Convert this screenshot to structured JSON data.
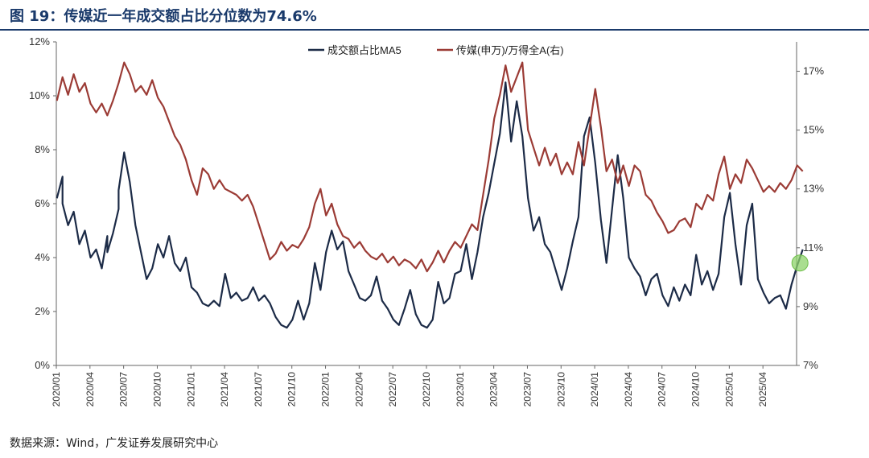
{
  "header": {
    "title": "图 19：传媒近一年成交额占比分位数为74.6%"
  },
  "footer": {
    "source": "数据来源：Wind，广发证券发展研究中心"
  },
  "colors": {
    "ma5": "#1c2b47",
    "index": "#9b3b35",
    "highlight": "#8ed36b",
    "accent": "#1a3a6b"
  },
  "chart_data": {
    "type": "line",
    "legend_position": "top-center",
    "grid": false,
    "x_ticks": [
      "2020/01",
      "2020/04",
      "2020/07",
      "2020/10",
      "2021/01",
      "2021/04",
      "2021/07",
      "2021/10",
      "2022/01",
      "2022/04",
      "2022/07",
      "2022/10",
      "2023/01",
      "2023/04",
      "2023/07",
      "2023/10",
      "2024/01",
      "2024/04",
      "2024/07",
      "2024/10",
      "2025/01",
      "2025/04"
    ],
    "x_range": [
      "2020/01",
      "2025/07"
    ],
    "y_left": {
      "ticks": [
        "0%",
        "2%",
        "4%",
        "6%",
        "8%",
        "10%",
        "12%"
      ],
      "min": 0,
      "max": 12
    },
    "y_right": {
      "ticks": [
        "7%",
        "9%",
        "11%",
        "13%",
        "15%",
        "17%"
      ],
      "min": 7,
      "max": 18
    },
    "series": [
      {
        "name": "成交额占比MA5",
        "axis": "left",
        "color": "#1c2b47",
        "unit": "%",
        "points": [
          [
            "2020/01",
            6.2
          ],
          [
            "2020/01",
            7.0
          ],
          [
            "2020/01",
            6.0
          ],
          [
            "2020/02",
            5.2
          ],
          [
            "2020/02",
            5.7
          ],
          [
            "2020/03",
            4.5
          ],
          [
            "2020/03",
            5.0
          ],
          [
            "2020/04",
            4.0
          ],
          [
            "2020/04",
            4.3
          ],
          [
            "2020/05",
            3.6
          ],
          [
            "2020/05",
            4.8
          ],
          [
            "2020/05",
            4.2
          ],
          [
            "2020/06",
            4.9
          ],
          [
            "2020/06",
            5.8
          ],
          [
            "2020/06",
            6.5
          ],
          [
            "2020/07",
            7.9
          ],
          [
            "2020/07",
            6.8
          ],
          [
            "2020/08",
            5.2
          ],
          [
            "2020/08",
            4.2
          ],
          [
            "2020/09",
            3.2
          ],
          [
            "2020/09",
            3.6
          ],
          [
            "2020/10",
            4.5
          ],
          [
            "2020/10",
            4.0
          ],
          [
            "2020/11",
            4.8
          ],
          [
            "2020/11",
            3.8
          ],
          [
            "2020/12",
            3.5
          ],
          [
            "2020/12",
            4.0
          ],
          [
            "2021/01",
            2.9
          ],
          [
            "2021/01",
            2.7
          ],
          [
            "2021/02",
            2.3
          ],
          [
            "2021/02",
            2.2
          ],
          [
            "2021/03",
            2.4
          ],
          [
            "2021/03",
            2.2
          ],
          [
            "2021/04",
            3.4
          ],
          [
            "2021/04",
            2.5
          ],
          [
            "2021/05",
            2.7
          ],
          [
            "2021/05",
            2.4
          ],
          [
            "2021/06",
            2.5
          ],
          [
            "2021/06",
            2.9
          ],
          [
            "2021/07",
            2.4
          ],
          [
            "2021/07",
            2.6
          ],
          [
            "2021/08",
            2.3
          ],
          [
            "2021/08",
            1.8
          ],
          [
            "2021/09",
            1.5
          ],
          [
            "2021/09",
            1.4
          ],
          [
            "2021/10",
            1.7
          ],
          [
            "2021/10",
            2.4
          ],
          [
            "2021/11",
            1.7
          ],
          [
            "2021/11",
            2.3
          ],
          [
            "2021/12",
            3.8
          ],
          [
            "2021/12",
            2.8
          ],
          [
            "2022/01",
            4.2
          ],
          [
            "2022/01",
            5.0
          ],
          [
            "2022/02",
            4.3
          ],
          [
            "2022/02",
            4.6
          ],
          [
            "2022/03",
            3.5
          ],
          [
            "2022/03",
            3.0
          ],
          [
            "2022/04",
            2.5
          ],
          [
            "2022/04",
            2.4
          ],
          [
            "2022/05",
            2.6
          ],
          [
            "2022/05",
            3.3
          ],
          [
            "2022/06",
            2.4
          ],
          [
            "2022/06",
            2.1
          ],
          [
            "2022/07",
            1.7
          ],
          [
            "2022/07",
            1.5
          ],
          [
            "2022/08",
            2.1
          ],
          [
            "2022/08",
            2.8
          ],
          [
            "2022/09",
            1.9
          ],
          [
            "2022/09",
            1.5
          ],
          [
            "2022/10",
            1.4
          ],
          [
            "2022/10",
            1.7
          ],
          [
            "2022/11",
            3.1
          ],
          [
            "2022/11",
            2.3
          ],
          [
            "2022/12",
            2.5
          ],
          [
            "2022/12",
            3.4
          ],
          [
            "2023/01",
            3.5
          ],
          [
            "2023/01",
            4.5
          ],
          [
            "2023/02",
            3.2
          ],
          [
            "2023/02",
            4.2
          ],
          [
            "2023/03",
            5.5
          ],
          [
            "2023/03",
            6.4
          ],
          [
            "2023/04",
            7.5
          ],
          [
            "2023/04",
            8.6
          ],
          [
            "2023/05",
            10.5
          ],
          [
            "2023/05",
            8.3
          ],
          [
            "2023/06",
            9.8
          ],
          [
            "2023/06",
            8.5
          ],
          [
            "2023/07",
            6.2
          ],
          [
            "2023/07",
            5.0
          ],
          [
            "2023/08",
            5.5
          ],
          [
            "2023/08",
            4.5
          ],
          [
            "2023/09",
            4.2
          ],
          [
            "2023/09",
            3.5
          ],
          [
            "2023/10",
            2.8
          ],
          [
            "2023/10",
            3.6
          ],
          [
            "2023/11",
            4.6
          ],
          [
            "2023/11",
            5.5
          ],
          [
            "2023/12",
            8.5
          ],
          [
            "2023/12",
            9.2
          ],
          [
            "2024/01",
            7.5
          ],
          [
            "2024/01",
            5.4
          ],
          [
            "2024/02",
            3.8
          ],
          [
            "2024/02",
            5.8
          ],
          [
            "2024/03",
            7.8
          ],
          [
            "2024/03",
            6.2
          ],
          [
            "2024/04",
            4.0
          ],
          [
            "2024/04",
            3.6
          ],
          [
            "2024/05",
            3.3
          ],
          [
            "2024/05",
            2.6
          ],
          [
            "2024/06",
            3.2
          ],
          [
            "2024/06",
            3.4
          ],
          [
            "2024/07",
            2.6
          ],
          [
            "2024/07",
            2.2
          ],
          [
            "2024/08",
            2.9
          ],
          [
            "2024/08",
            2.4
          ],
          [
            "2024/09",
            3.0
          ],
          [
            "2024/09",
            2.6
          ],
          [
            "2024/10",
            4.1
          ],
          [
            "2024/10",
            3.0
          ],
          [
            "2024/11",
            3.5
          ],
          [
            "2024/11",
            2.8
          ],
          [
            "2024/12",
            3.4
          ],
          [
            "2024/12",
            5.5
          ],
          [
            "2025/01",
            6.4
          ],
          [
            "2025/01",
            4.5
          ],
          [
            "2025/02",
            3.0
          ],
          [
            "2025/02",
            5.2
          ],
          [
            "2025/03",
            6.0
          ],
          [
            "2025/03",
            3.2
          ],
          [
            "2025/04",
            2.7
          ],
          [
            "2025/04",
            2.3
          ],
          [
            "2025/05",
            2.5
          ],
          [
            "2025/05",
            2.6
          ],
          [
            "2025/06",
            2.1
          ],
          [
            "2025/06",
            3.0
          ],
          [
            "2025/07",
            3.7
          ],
          [
            "2025/07",
            4.3
          ]
        ]
      },
      {
        "name": "传媒(申万)/万得全A(右)",
        "axis": "right",
        "color": "#9b3b35",
        "unit": "%",
        "points": [
          [
            "2020/01",
            16.0
          ],
          [
            "2020/01",
            16.8
          ],
          [
            "2020/02",
            16.2
          ],
          [
            "2020/02",
            16.9
          ],
          [
            "2020/03",
            16.3
          ],
          [
            "2020/03",
            16.6
          ],
          [
            "2020/04",
            15.9
          ],
          [
            "2020/04",
            15.6
          ],
          [
            "2020/05",
            15.9
          ],
          [
            "2020/05",
            15.5
          ],
          [
            "2020/06",
            16.0
          ],
          [
            "2020/06",
            16.6
          ],
          [
            "2020/07",
            17.3
          ],
          [
            "2020/07",
            16.9
          ],
          [
            "2020/08",
            16.3
          ],
          [
            "2020/08",
            16.5
          ],
          [
            "2020/09",
            16.2
          ],
          [
            "2020/09",
            16.7
          ],
          [
            "2020/10",
            16.1
          ],
          [
            "2020/10",
            15.8
          ],
          [
            "2020/11",
            15.3
          ],
          [
            "2020/11",
            14.8
          ],
          [
            "2020/12",
            14.5
          ],
          [
            "2020/12",
            14.0
          ],
          [
            "2021/01",
            13.3
          ],
          [
            "2021/01",
            12.8
          ],
          [
            "2021/02",
            13.7
          ],
          [
            "2021/02",
            13.5
          ],
          [
            "2021/03",
            13.0
          ],
          [
            "2021/03",
            13.3
          ],
          [
            "2021/04",
            13.0
          ],
          [
            "2021/04",
            12.9
          ],
          [
            "2021/05",
            12.8
          ],
          [
            "2021/05",
            12.6
          ],
          [
            "2021/06",
            12.8
          ],
          [
            "2021/06",
            12.4
          ],
          [
            "2021/07",
            11.8
          ],
          [
            "2021/07",
            11.2
          ],
          [
            "2021/08",
            10.6
          ],
          [
            "2021/08",
            10.8
          ],
          [
            "2021/09",
            11.2
          ],
          [
            "2021/09",
            10.9
          ],
          [
            "2021/10",
            11.1
          ],
          [
            "2021/10",
            11.0
          ],
          [
            "2021/11",
            11.3
          ],
          [
            "2021/11",
            11.7
          ],
          [
            "2021/12",
            12.5
          ],
          [
            "2021/12",
            13.0
          ],
          [
            "2022/01",
            12.1
          ],
          [
            "2022/01",
            12.5
          ],
          [
            "2022/02",
            11.8
          ],
          [
            "2022/02",
            11.4
          ],
          [
            "2022/03",
            11.3
          ],
          [
            "2022/03",
            11.0
          ],
          [
            "2022/04",
            11.2
          ],
          [
            "2022/04",
            10.9
          ],
          [
            "2022/05",
            10.7
          ],
          [
            "2022/05",
            10.6
          ],
          [
            "2022/06",
            10.8
          ],
          [
            "2022/06",
            10.5
          ],
          [
            "2022/07",
            10.7
          ],
          [
            "2022/07",
            10.4
          ],
          [
            "2022/08",
            10.6
          ],
          [
            "2022/08",
            10.5
          ],
          [
            "2022/09",
            10.3
          ],
          [
            "2022/09",
            10.6
          ],
          [
            "2022/10",
            10.2
          ],
          [
            "2022/10",
            10.5
          ],
          [
            "2022/11",
            10.9
          ],
          [
            "2022/11",
            10.5
          ],
          [
            "2022/12",
            10.9
          ],
          [
            "2022/12",
            11.2
          ],
          [
            "2023/01",
            11.0
          ],
          [
            "2023/01",
            11.4
          ],
          [
            "2023/02",
            11.8
          ],
          [
            "2023/02",
            11.6
          ],
          [
            "2023/03",
            12.8
          ],
          [
            "2023/03",
            14.0
          ],
          [
            "2023/04",
            15.4
          ],
          [
            "2023/04",
            16.2
          ],
          [
            "2023/05",
            17.2
          ],
          [
            "2023/05",
            16.3
          ],
          [
            "2023/06",
            16.8
          ],
          [
            "2023/06",
            17.3
          ],
          [
            "2023/07",
            15.0
          ],
          [
            "2023/07",
            14.4
          ],
          [
            "2023/08",
            13.8
          ],
          [
            "2023/08",
            14.4
          ],
          [
            "2023/09",
            13.8
          ],
          [
            "2023/09",
            14.2
          ],
          [
            "2023/10",
            13.5
          ],
          [
            "2023/10",
            13.9
          ],
          [
            "2023/11",
            13.5
          ],
          [
            "2023/11",
            14.6
          ],
          [
            "2023/12",
            13.8
          ],
          [
            "2024/01",
            16.4
          ],
          [
            "2024/01",
            15.1
          ],
          [
            "2024/02",
            13.6
          ],
          [
            "2024/02",
            14.0
          ],
          [
            "2024/03",
            13.2
          ],
          [
            "2024/03",
            13.8
          ],
          [
            "2024/04",
            13.1
          ],
          [
            "2024/04",
            13.8
          ],
          [
            "2024/05",
            13.6
          ],
          [
            "2024/05",
            12.8
          ],
          [
            "2024/06",
            12.6
          ],
          [
            "2024/06",
            12.2
          ],
          [
            "2024/07",
            11.9
          ],
          [
            "2024/07",
            11.5
          ],
          [
            "2024/08",
            11.6
          ],
          [
            "2024/08",
            11.9
          ],
          [
            "2024/09",
            12.0
          ],
          [
            "2024/09",
            11.7
          ],
          [
            "2024/10",
            12.5
          ],
          [
            "2024/10",
            12.3
          ],
          [
            "2024/11",
            12.8
          ],
          [
            "2024/11",
            12.6
          ],
          [
            "2024/12",
            13.5
          ],
          [
            "2024/12",
            14.1
          ],
          [
            "2025/01",
            13.0
          ],
          [
            "2025/01",
            13.5
          ],
          [
            "2025/02",
            13.2
          ],
          [
            "2025/02",
            14.0
          ],
          [
            "2025/03",
            13.7
          ],
          [
            "2025/03",
            13.3
          ],
          [
            "2025/04",
            12.9
          ],
          [
            "2025/04",
            13.1
          ],
          [
            "2025/05",
            12.9
          ],
          [
            "2025/05",
            13.2
          ],
          [
            "2025/06",
            13.0
          ],
          [
            "2025/06",
            13.3
          ],
          [
            "2025/07",
            13.8
          ],
          [
            "2025/07",
            13.6
          ]
        ]
      }
    ],
    "highlight": {
      "series": "成交额占比MA5",
      "date": "2025/07",
      "value": 3.8
    }
  }
}
